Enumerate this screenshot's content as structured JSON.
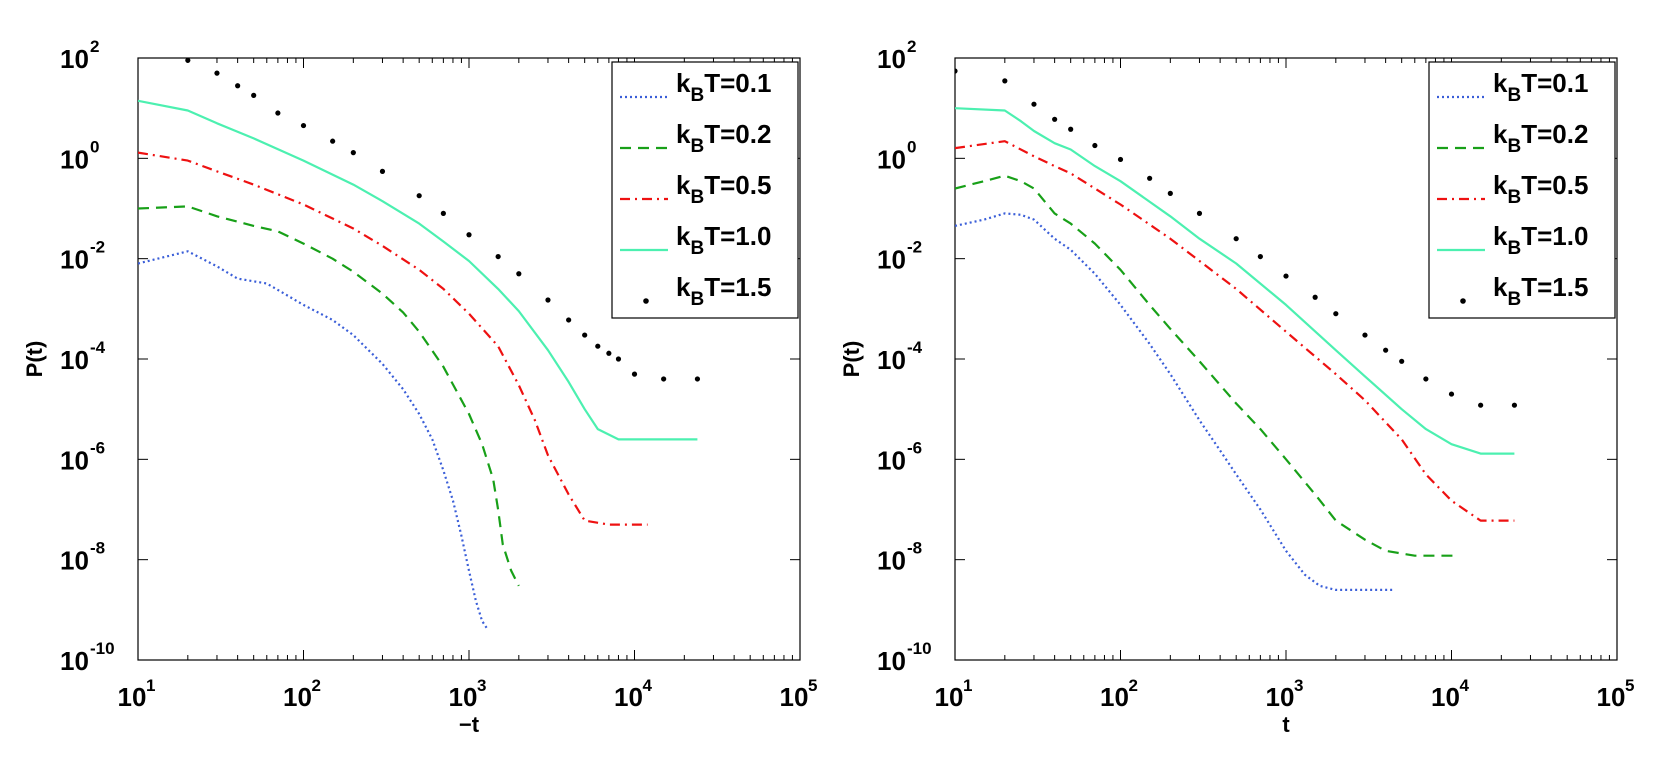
{
  "figure": {
    "name": "Two-panel log-log plot of P(t) for several k_B T"
  },
  "chart_data": [
    {
      "type": "line",
      "xscale": "log",
      "yscale": "log",
      "xlim": [
        10,
        100000
      ],
      "ylim": [
        1e-10,
        100
      ],
      "xlabel": "−t",
      "ylabel": "P(t)",
      "xticks": [
        10,
        100,
        1000,
        10000,
        100000
      ],
      "yticks": [
        1e-10,
        1e-08,
        1e-06,
        0.0001,
        0.01,
        1,
        100
      ],
      "legend_position": "top-right",
      "series": [
        {
          "name": "k_B T=0.1",
          "label_base": "k",
          "label_sub": "B",
          "label_rest": "T=0.1",
          "color": "#3a5ed8",
          "style": "dotted",
          "x": [
            10,
            20,
            30,
            40,
            60,
            100,
            150,
            200,
            300,
            400,
            500,
            600,
            700,
            800,
            900,
            1000,
            1100,
            1200,
            1300
          ],
          "y": [
            0.008,
            0.014,
            0.007,
            0.004,
            0.0032,
            0.0012,
            0.0006,
            0.0003,
            8e-05,
            2.5e-05,
            8e-06,
            2.5e-06,
            6e-07,
            1.5e-07,
            3e-08,
            6e-09,
            1.5e-09,
            6e-10,
            4e-10
          ]
        },
        {
          "name": "k_B T=0.2",
          "label_base": "k",
          "label_sub": "B",
          "label_rest": "T=0.2",
          "color": "#18a018",
          "style": "dashed",
          "x": [
            10,
            20,
            30,
            50,
            70,
            100,
            150,
            200,
            300,
            400,
            500,
            700,
            1000,
            1200,
            1400,
            1500,
            1600,
            1800,
            2000
          ],
          "y": [
            0.1,
            0.11,
            0.07,
            0.045,
            0.035,
            0.02,
            0.01,
            0.0055,
            0.002,
            0.00085,
            0.00035,
            7e-05,
            8e-06,
            2e-06,
            4e-07,
            1e-07,
            2e-08,
            6e-09,
            3e-09
          ]
        },
        {
          "name": "k_B T=0.5",
          "label_base": "k",
          "label_sub": "B",
          "label_rest": "T=0.5",
          "color": "#ee1111",
          "style": "dashdot",
          "x": [
            10,
            20,
            30,
            50,
            100,
            200,
            300,
            500,
            700,
            1000,
            1500,
            2000,
            2500,
            3000,
            4000,
            5000,
            7000,
            10000,
            12000
          ],
          "y": [
            1.3,
            0.9,
            0.55,
            0.3,
            0.12,
            0.04,
            0.018,
            0.006,
            0.0025,
            0.0008,
            0.00018,
            3e-05,
            6e-06,
            1.2e-06,
            2e-07,
            6e-08,
            5e-08,
            5e-08,
            5e-08
          ]
        },
        {
          "name": "k_B T=1.0",
          "label_base": "k",
          "label_sub": "B",
          "label_rest": "T=1.0",
          "color": "#4cf0b0",
          "style": "solid",
          "x": [
            10,
            20,
            30,
            50,
            100,
            200,
            300,
            500,
            700,
            1000,
            1500,
            2000,
            3000,
            4000,
            5000,
            6000,
            8000,
            10000,
            15000,
            24000
          ],
          "y": [
            14,
            9,
            5,
            2.5,
            0.9,
            0.3,
            0.14,
            0.05,
            0.022,
            0.009,
            0.0025,
            0.0009,
            0.00015,
            3.5e-05,
            1e-05,
            4e-06,
            2.5e-06,
            2.5e-06,
            2.5e-06,
            2.5e-06
          ]
        },
        {
          "name": "k_B T=1.5",
          "label_base": "k",
          "label_sub": "B",
          "label_rest": "T=1.5",
          "color": "#000000",
          "style": "points",
          "x": [
            20,
            30,
            40,
            50,
            70,
            100,
            150,
            200,
            300,
            500,
            700,
            1000,
            1500,
            2000,
            3000,
            4000,
            5000,
            6000,
            7000,
            8000,
            10000,
            15000,
            24000
          ],
          "y": [
            90,
            50,
            28,
            18,
            8,
            4.5,
            2.2,
            1.3,
            0.55,
            0.18,
            0.08,
            0.03,
            0.011,
            0.005,
            0.0015,
            0.0006,
            0.0003,
            0.00018,
            0.00013,
            0.0001,
            5e-05,
            4e-05,
            4e-05
          ]
        }
      ]
    },
    {
      "type": "line",
      "xscale": "log",
      "yscale": "log",
      "xlim": [
        10,
        100000
      ],
      "ylim": [
        1e-10,
        100
      ],
      "xlabel": "t",
      "ylabel": "P(t)",
      "xticks": [
        10,
        100,
        1000,
        10000,
        100000
      ],
      "yticks": [
        1e-10,
        1e-08,
        1e-06,
        0.0001,
        0.01,
        1,
        100
      ],
      "legend_position": "top-right",
      "series": [
        {
          "name": "k_B T=0.1",
          "label_base": "k",
          "label_sub": "B",
          "label_rest": "T=0.1",
          "color": "#3a5ed8",
          "style": "dotted",
          "x": [
            10,
            15,
            20,
            25,
            30,
            40,
            50,
            70,
            100,
            150,
            200,
            300,
            400,
            500,
            700,
            1000,
            1300,
            1600,
            2000,
            3000,
            4500
          ],
          "y": [
            0.045,
            0.06,
            0.08,
            0.075,
            0.06,
            0.025,
            0.015,
            0.005,
            0.0012,
            0.0002,
            5e-05,
            6e-06,
            1.5e-06,
            5e-07,
            1e-07,
            1.5e-08,
            5e-09,
            3e-09,
            2.5e-09,
            2.5e-09,
            2.5e-09
          ]
        },
        {
          "name": "k_B T=0.2",
          "label_base": "k",
          "label_sub": "B",
          "label_rest": "T=0.2",
          "color": "#18a018",
          "style": "dashed",
          "x": [
            10,
            15,
            20,
            25,
            30,
            40,
            50,
            70,
            100,
            150,
            200,
            300,
            500,
            700,
            1000,
            1500,
            2000,
            3000,
            4000,
            6000,
            11000
          ],
          "y": [
            0.25,
            0.35,
            0.45,
            0.35,
            0.25,
            0.08,
            0.05,
            0.02,
            0.006,
            0.0012,
            0.0004,
            9e-05,
            1.3e-05,
            4e-06,
            1e-06,
            2e-07,
            6e-08,
            2.5e-08,
            1.5e-08,
            1.2e-08,
            1.2e-08
          ]
        },
        {
          "name": "k_B T=0.5",
          "label_base": "k",
          "label_sub": "B",
          "label_rest": "T=0.5",
          "color": "#ee1111",
          "style": "dashdot",
          "x": [
            10,
            20,
            30,
            40,
            50,
            70,
            100,
            200,
            300,
            500,
            1000,
            2000,
            3000,
            5000,
            7000,
            10000,
            15000,
            24000
          ],
          "y": [
            1.6,
            2.2,
            1.1,
            0.7,
            0.5,
            0.25,
            0.12,
            0.025,
            0.009,
            0.0025,
            0.00035,
            5e-05,
            1.5e-05,
            2.5e-06,
            5e-07,
            1.5e-07,
            6e-08,
            6e-08
          ]
        },
        {
          "name": "k_B T=1.0",
          "label_base": "k",
          "label_sub": "B",
          "label_rest": "T=1.0",
          "color": "#4cf0b0",
          "style": "solid",
          "x": [
            10,
            20,
            25,
            30,
            40,
            50,
            70,
            100,
            200,
            300,
            500,
            1000,
            2000,
            3000,
            5000,
            7000,
            10000,
            15000,
            24000
          ],
          "y": [
            10,
            9,
            5.5,
            3.5,
            2,
            1.5,
            0.7,
            0.35,
            0.07,
            0.025,
            0.008,
            0.0012,
            0.00015,
            4.5e-05,
            1e-05,
            4e-06,
            2e-06,
            1.3e-06,
            1.3e-06
          ]
        },
        {
          "name": "k_B T=1.5",
          "label_base": "k",
          "label_sub": "B",
          "label_rest": "T=1.5",
          "color": "#000000",
          "style": "points",
          "x": [
            10,
            20,
            30,
            40,
            50,
            70,
            100,
            150,
            200,
            300,
            500,
            700,
            1000,
            1500,
            2000,
            3000,
            4000,
            5000,
            7000,
            10000,
            15000,
            24000
          ],
          "y": [
            55,
            35,
            12,
            6,
            3.8,
            1.8,
            0.95,
            0.4,
            0.2,
            0.08,
            0.025,
            0.011,
            0.0045,
            0.0017,
            0.0008,
            0.0003,
            0.00015,
            9e-05,
            4e-05,
            2e-05,
            1.2e-05,
            1.2e-05
          ]
        }
      ]
    }
  ]
}
